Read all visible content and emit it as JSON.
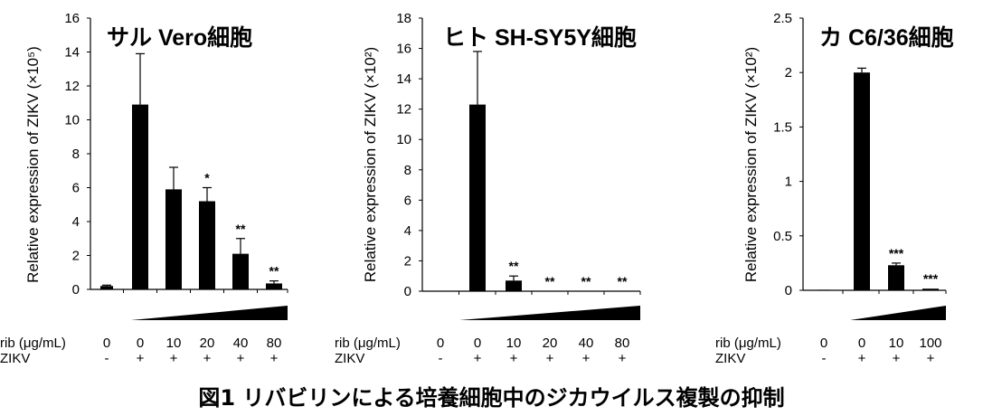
{
  "figure_caption": "図1 リバビリンによる培養細胞中のジカウイルス複製の抑制",
  "colors": {
    "bar": "#000000",
    "axis": "#000000",
    "background": "#ffffff"
  },
  "row_labels": {
    "rib": "rib (μg/mL)",
    "zikv": "ZIKV"
  },
  "chart_data": [
    {
      "type": "bar",
      "title": "サル Vero細胞",
      "ylabel": "Relative expression of ZIKV (×10⁵)",
      "xlabel": "",
      "ylim": [
        0,
        16
      ],
      "yticks": [
        0,
        2,
        4,
        6,
        8,
        10,
        12,
        14,
        16
      ],
      "ytick_labels": [
        "0",
        "2",
        "4",
        "6",
        "8",
        "10",
        "12",
        "14",
        "16"
      ],
      "categories": [
        "0",
        "0",
        "10",
        "20",
        "40",
        "80"
      ],
      "zikv": [
        "-",
        "+",
        "+",
        "+",
        "+",
        "+"
      ],
      "values": [
        0.2,
        10.9,
        5.9,
        5.2,
        2.1,
        0.35
      ],
      "errors": [
        0.05,
        3.0,
        1.3,
        0.8,
        0.9,
        0.15
      ],
      "significance": [
        "",
        "",
        "",
        "*",
        "**",
        "**"
      ],
      "legend": "none",
      "grid": false
    },
    {
      "type": "bar",
      "title": "ヒト SH-SY5Y細胞",
      "ylabel": "Relative expression of ZIKV (×10²)",
      "xlabel": "",
      "ylim": [
        0,
        18
      ],
      "yticks": [
        0,
        2,
        4,
        6,
        8,
        10,
        12,
        14,
        16,
        18
      ],
      "ytick_labels": [
        "0",
        "2",
        "4",
        "6",
        "8",
        "10",
        "12",
        "14",
        "16",
        "18"
      ],
      "categories": [
        "0",
        "0",
        "10",
        "20",
        "40",
        "80"
      ],
      "zikv": [
        "-",
        "+",
        "+",
        "+",
        "+",
        "+"
      ],
      "values": [
        0,
        12.3,
        0.7,
        0,
        0,
        0
      ],
      "errors": [
        0,
        3.5,
        0.3,
        0,
        0,
        0
      ],
      "significance": [
        "",
        "",
        "**",
        "**",
        "**",
        "**"
      ],
      "legend": "none",
      "grid": false
    },
    {
      "type": "bar",
      "title": "カ C6/36細胞",
      "ylabel": "Relative expression of ZIKV (×10²)",
      "xlabel": "",
      "ylim": [
        0,
        2.5
      ],
      "yticks": [
        0,
        0.5,
        1,
        1.5,
        2,
        2.5
      ],
      "ytick_labels": [
        "0",
        "0.5",
        "1",
        "1.5",
        "2",
        "2.5"
      ],
      "categories": [
        "0",
        "0",
        "10",
        "100"
      ],
      "zikv": [
        "-",
        "+",
        "+",
        "+"
      ],
      "values": [
        0.005,
        2.0,
        0.23,
        0.015
      ],
      "errors": [
        0,
        0.04,
        0.02,
        0
      ],
      "significance": [
        "",
        "",
        "***",
        "***"
      ],
      "legend": "none",
      "grid": false
    }
  ]
}
